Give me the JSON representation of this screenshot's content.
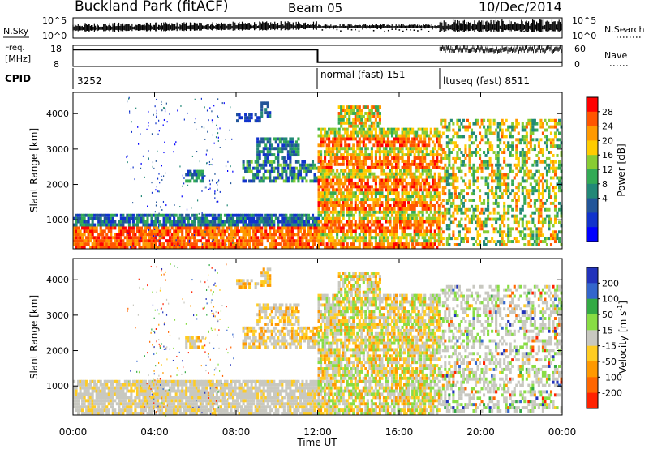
{
  "header": {
    "station": "Buckland Park (fitACF)",
    "beam": "Beam 05",
    "date": "10/Dec/2014"
  },
  "top_panels": {
    "nsky_label": "N.Sky",
    "nsky_ticks": [
      "10^5",
      "10^0"
    ],
    "nsearch_label": "N.Search",
    "nsearch_ticks": [
      "10^5",
      "10^0"
    ],
    "freq_label_1": "Freq.",
    "freq_label_2": "[MHz]",
    "freq_ticks": [
      "18",
      "8"
    ],
    "nave_label": "Nave",
    "nave_ticks": [
      "60",
      "0"
    ],
    "cpid_label": "CPID",
    "cpid_segments": [
      {
        "label": "3252",
        "start_hour": 0,
        "end_hour": 12
      },
      {
        "label": "normal (fast) 151",
        "start_hour": 12,
        "end_hour": 18
      },
      {
        "label": "ltuseq (fast) 8511",
        "start_hour": 18,
        "end_hour": 24
      }
    ],
    "freq_mhz": [
      {
        "start_hour": 0,
        "end_hour": 12,
        "value": 16
      },
      {
        "start_hour": 12,
        "end_hour": 24,
        "value": 10
      }
    ],
    "nave": [
      {
        "start_hour": 0,
        "end_hour": 18,
        "value": 0
      },
      {
        "start_hour": 18,
        "end_hour": 24,
        "value": 50
      }
    ]
  },
  "chart_data": [
    {
      "type": "heatmap",
      "quantity": "Power",
      "ylabel": "Slant Range [km]",
      "ylim": [
        180,
        4600
      ],
      "yticks": [
        "1000",
        "2000",
        "3000",
        "4000"
      ],
      "xlim_hours": [
        0,
        24
      ],
      "colorbar_label": "Power [dB]",
      "colorbar_ticks": [
        "28",
        "24",
        "20",
        "16",
        "12",
        "8",
        "4"
      ],
      "colorbar_colors": [
        "#ff0000",
        "#ff5500",
        "#ff9900",
        "#ffcc00",
        "#88cc33",
        "#33aa55",
        "#228877",
        "#225599",
        "#1133cc",
        "#0000ff"
      ]
    },
    {
      "type": "heatmap",
      "quantity": "Velocity",
      "ylabel": "Slant Range [km]",
      "ylim": [
        180,
        4600
      ],
      "yticks": [
        "1000",
        "2000",
        "3000",
        "4000"
      ],
      "xlim_hours": [
        0,
        24
      ],
      "xticks": [
        "00:00",
        "04:00",
        "08:00",
        "12:00",
        "16:00",
        "20:00",
        "00:00"
      ],
      "xlabel": "Time UT",
      "colorbar_label_main": "Velocity",
      "colorbar_label_unit": "[m s",
      "colorbar_label_exp": "-1",
      "colorbar_label_close": "]",
      "colorbar_ticks": [
        "200",
        "100",
        "50",
        "15",
        "-15",
        "-50",
        "-100",
        "-200"
      ],
      "colorbar_colors": [
        "#2233bb",
        "#3366cc",
        "#33aa44",
        "#88dd44",
        "#c8c8c0",
        "#ffcc22",
        "#ff9900",
        "#ff6600",
        "#ff2200"
      ]
    }
  ]
}
